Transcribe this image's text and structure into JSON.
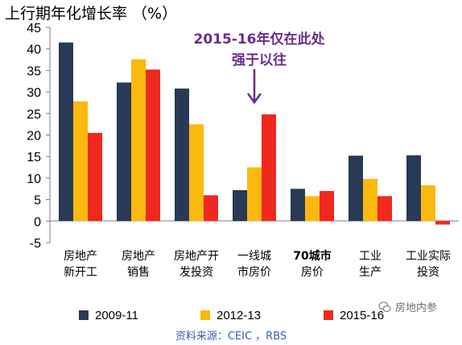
{
  "chart_data": {
    "type": "bar",
    "title": "上行期年化增长率 （%）",
    "categories": [
      [
        "房地产",
        "新开工"
      ],
      [
        "房地产",
        "销售"
      ],
      [
        "房地产开",
        "发投资"
      ],
      [
        "一线城",
        "市房价"
      ],
      [
        "70城市",
        "房价"
      ],
      [
        "工业",
        "生产"
      ],
      [
        "工业实际",
        "投资"
      ]
    ],
    "series": [
      {
        "name": "2009-11",
        "color": "#283a55",
        "values": [
          41.5,
          32.2,
          30.8,
          7.2,
          7.5,
          15.2,
          15.3
        ]
      },
      {
        "name": "2012-13",
        "color": "#fbb80f",
        "values": [
          27.8,
          37.6,
          22.5,
          12.5,
          5.8,
          9.8,
          8.3
        ]
      },
      {
        "name": "2015-16",
        "color": "#f0281e",
        "values": [
          20.5,
          35.2,
          6.0,
          24.8,
          7.0,
          5.8,
          -0.8
        ]
      }
    ],
    "ylim": [
      -5,
      45
    ],
    "yticks": [
      -5,
      0,
      5,
      10,
      15,
      20,
      25,
      30,
      35,
      40,
      45
    ],
    "annotation": {
      "line1": "2015-16年仅在此处",
      "line2": "强于以往",
      "color": "#6a2c8e",
      "arrow_category_index": 3
    },
    "grid": false,
    "legend_position": "bottom"
  },
  "watermark": {
    "text": "房地内参",
    "icon": "wechat-icon"
  },
  "source": "资料来源：CEIC ，RBS"
}
